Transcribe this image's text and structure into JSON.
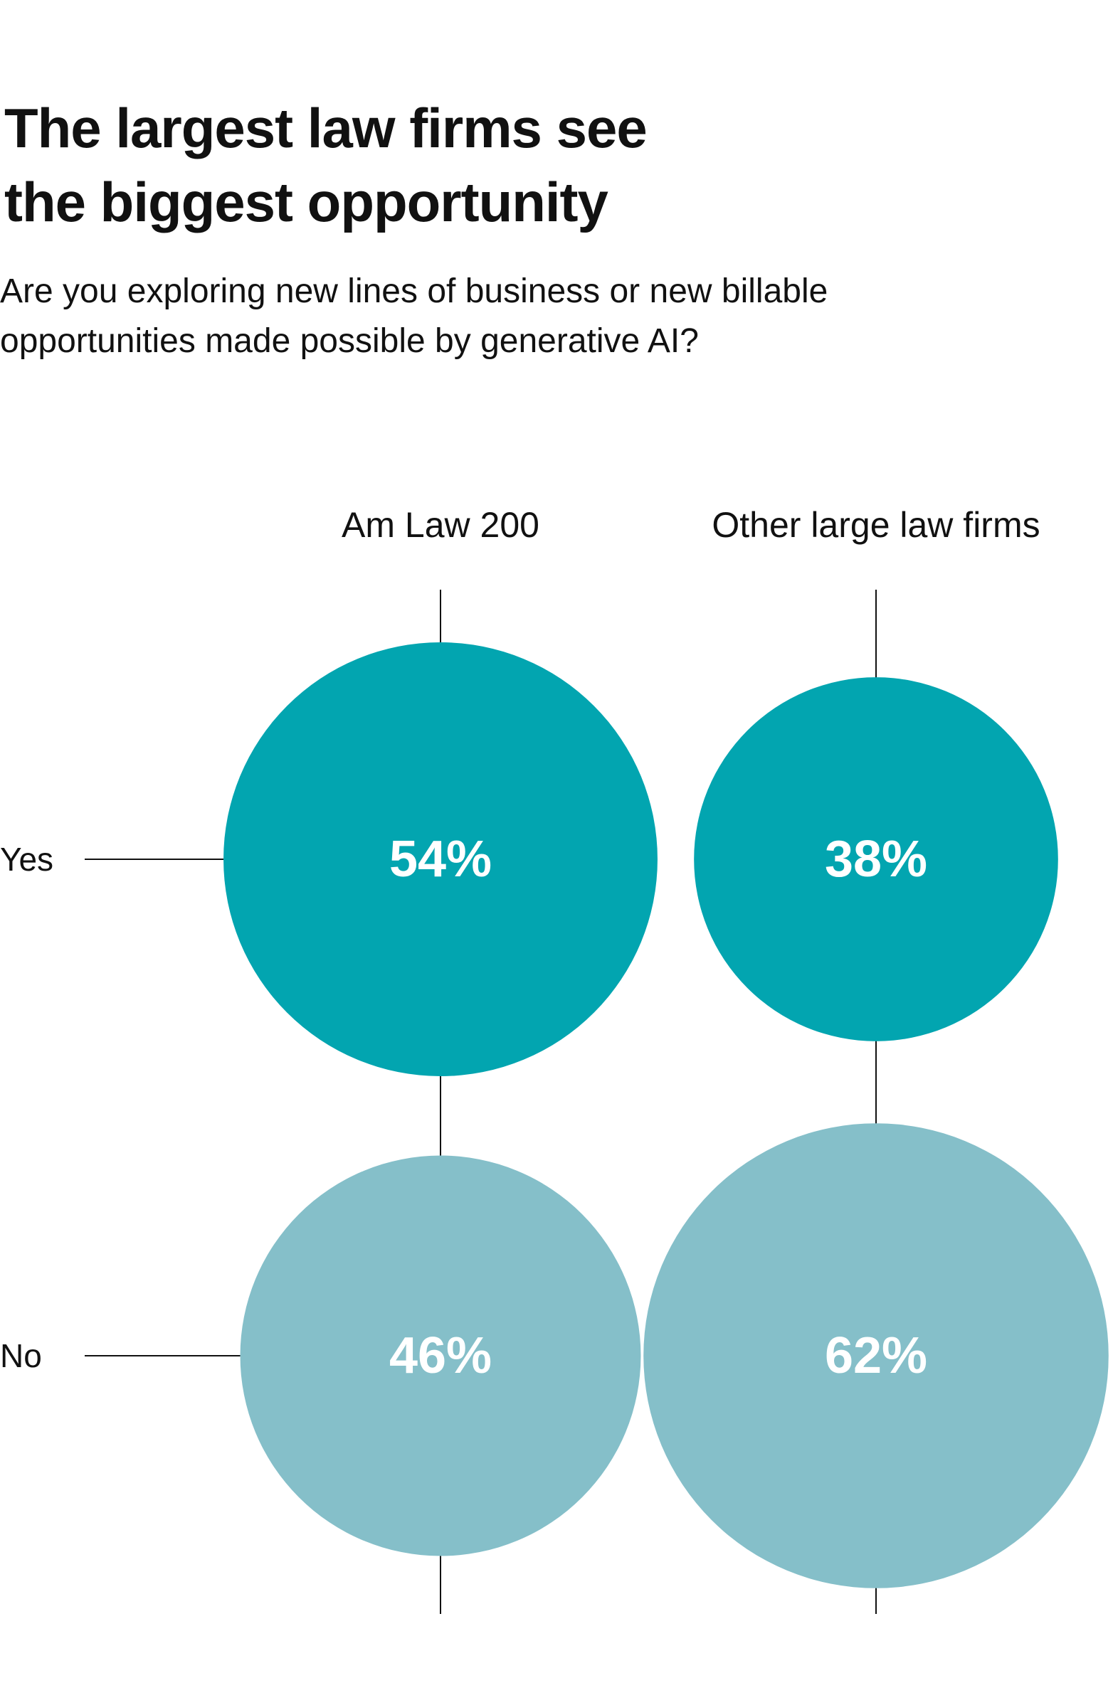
{
  "chart_data": {
    "type": "bubble-matrix",
    "title_lines": [
      "The largest law firms see",
      "the biggest opportunity"
    ],
    "subtitle": "Are you exploring new lines of business or new billable opportunities made possible by generative AI?",
    "columns": [
      "Am Law 200",
      "Other large law firms"
    ],
    "rows": [
      "Yes",
      "No"
    ],
    "values": [
      [
        54,
        38
      ],
      [
        46,
        62
      ]
    ],
    "labels": [
      [
        "54%",
        "38%"
      ],
      [
        "46%",
        "62%"
      ]
    ],
    "unit": "%",
    "colors": {
      "Yes": "#02A5B0",
      "No": "#85BFC9",
      "label": "#ffffff",
      "line": "#111111"
    }
  }
}
